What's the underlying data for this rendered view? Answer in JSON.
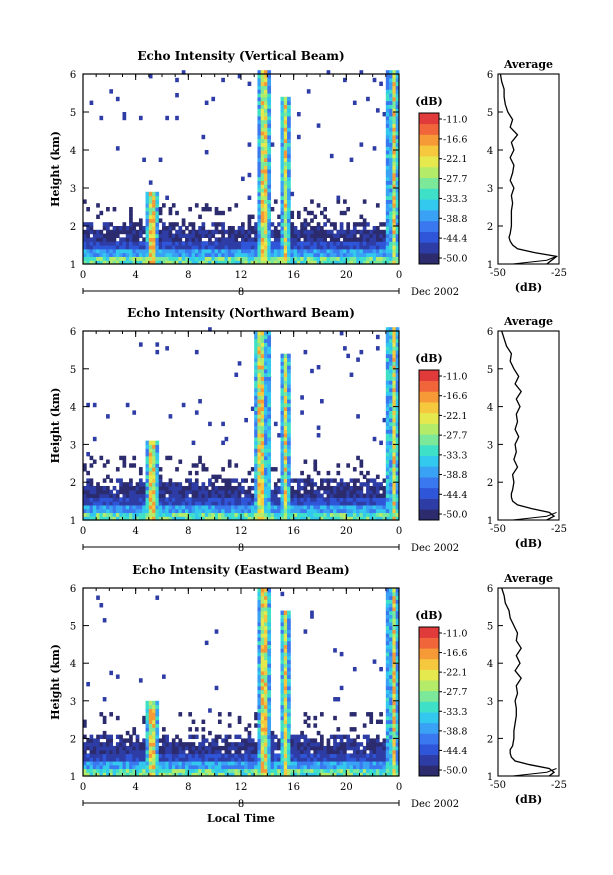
{
  "chart_data": [
    {
      "type": "heatmap",
      "title": "Echo Intensity (Vertical Beam)",
      "ylabel": "Height (km)",
      "yticks": [
        "1",
        "2",
        "3",
        "4",
        "5",
        "6"
      ],
      "ylim": [
        1,
        6
      ],
      "xticks": [
        "0",
        "4",
        "8",
        "12",
        "16",
        "20",
        "0"
      ],
      "xlim": [
        0,
        24
      ],
      "day_label": "8",
      "date_label": "Dec 2002",
      "colorbar": {
        "unit": "(dB)",
        "ticks": [
          "-11.0",
          "-16.6",
          "-22.1",
          "-27.7",
          "-33.3",
          "-38.8",
          "-44.4",
          "-50.0"
        ]
      },
      "spikes": [
        {
          "time": 5.2,
          "top": 2.9,
          "width": 0.5
        },
        {
          "time": 13.7,
          "top": 6.0,
          "width": 0.5
        },
        {
          "time": 15.3,
          "top": 5.3,
          "width": 0.35
        },
        {
          "time": 23.6,
          "top": 6.0,
          "width": 0.5
        }
      ],
      "average_profile": {
        "title": "Average",
        "xlabel": "(dB)",
        "xticks": [
          "-50",
          "-25"
        ],
        "xlim": [
          -50,
          -25
        ],
        "yticks": [
          "1",
          "2",
          "3",
          "4",
          "5",
          "6"
        ],
        "height": [
          1.0,
          1.1,
          1.2,
          1.3,
          1.4,
          1.5,
          1.6,
          1.7,
          1.8,
          2.0,
          2.2,
          2.4,
          2.6,
          2.8,
          3.0,
          3.2,
          3.4,
          3.6,
          3.8,
          4.0,
          4.2,
          4.4,
          4.6,
          4.8,
          5.0,
          5.2,
          5.4,
          5.6,
          5.8,
          6.0
        ],
        "value": [
          -30,
          -28,
          -26,
          -35,
          -42,
          -44,
          -45,
          -45.5,
          -45,
          -44.5,
          -44.5,
          -44.5,
          -44,
          -44.5,
          -43.5,
          -45,
          -44,
          -43.5,
          -45,
          -43.5,
          -44.5,
          -42,
          -45,
          -44,
          -46,
          -47,
          -47.5,
          -47.5,
          -48.5,
          -49
        ]
      }
    },
    {
      "type": "heatmap",
      "title": "Echo Intensity (Northward Beam)",
      "ylabel": "Height (km)",
      "yticks": [
        "1",
        "2",
        "3",
        "4",
        "5",
        "6"
      ],
      "ylim": [
        1,
        6
      ],
      "xticks": [
        "0",
        "4",
        "8",
        "12",
        "16",
        "20",
        "0"
      ],
      "xlim": [
        0,
        24
      ],
      "day_label": "8",
      "date_label": "Dec 2002",
      "colorbar": {
        "unit": "(dB)",
        "ticks": [
          "-11.0",
          "-16.6",
          "-22.1",
          "-27.7",
          "-33.3",
          "-38.8",
          "-44.4",
          "-50.0"
        ]
      },
      "spikes": [
        {
          "time": 5.3,
          "top": 3.1,
          "width": 0.5
        },
        {
          "time": 13.6,
          "top": 5.9,
          "width": 0.6
        },
        {
          "time": 15.4,
          "top": 5.3,
          "width": 0.35
        },
        {
          "time": 23.6,
          "top": 6.0,
          "width": 0.5
        }
      ],
      "average_profile": {
        "title": "Average",
        "xlabel": "(dB)",
        "xticks": [
          "-50",
          "-25"
        ],
        "xlim": [
          -50,
          -25
        ],
        "yticks": [
          "1",
          "2",
          "3",
          "4",
          "5",
          "6"
        ],
        "height": [
          1.0,
          1.1,
          1.2,
          1.3,
          1.4,
          1.5,
          1.6,
          1.7,
          1.8,
          2.0,
          2.2,
          2.4,
          2.6,
          2.8,
          3.0,
          3.2,
          3.4,
          3.6,
          3.8,
          4.0,
          4.2,
          4.4,
          4.6,
          4.8,
          5.0,
          5.2,
          5.4,
          5.6,
          5.8,
          6.0
        ],
        "value": [
          -30,
          -27,
          -29,
          -36,
          -42,
          -44,
          -44.5,
          -44.5,
          -44,
          -43.5,
          -44,
          -42,
          -43.5,
          -42.5,
          -43,
          -41.5,
          -43,
          -42,
          -42.5,
          -41,
          -42.5,
          -40.5,
          -43,
          -41.5,
          -43.5,
          -45,
          -44.5,
          -46.5,
          -47.5,
          -48.5
        ]
      }
    },
    {
      "type": "heatmap",
      "title": "Echo Intensity (Eastward Beam)",
      "ylabel": "Height (km)",
      "yticks": [
        "1",
        "2",
        "3",
        "4",
        "5",
        "6"
      ],
      "ylim": [
        1,
        6
      ],
      "xticks": [
        "0",
        "4",
        "8",
        "12",
        "16",
        "20",
        "0"
      ],
      "xlim": [
        0,
        24
      ],
      "day_label": "8",
      "date_label": "Dec 2002",
      "xlabel": "Local Time",
      "colorbar": {
        "unit": "(dB)",
        "ticks": [
          "-11.0",
          "-16.6",
          "-22.1",
          "-27.7",
          "-33.3",
          "-38.8",
          "-44.4",
          "-50.0"
        ]
      },
      "spikes": [
        {
          "time": 5.2,
          "top": 3.0,
          "width": 0.5
        },
        {
          "time": 13.7,
          "top": 5.9,
          "width": 0.5
        },
        {
          "time": 15.3,
          "top": 5.3,
          "width": 0.35
        },
        {
          "time": 23.6,
          "top": 5.9,
          "width": 0.5
        }
      ],
      "average_profile": {
        "title": "Average",
        "xlabel": "(dB)",
        "xticks": [
          "-50",
          "-25"
        ],
        "xlim": [
          -50,
          -25
        ],
        "yticks": [
          "1",
          "2",
          "3",
          "4",
          "5",
          "6"
        ],
        "height": [
          1.0,
          1.1,
          1.2,
          1.3,
          1.4,
          1.5,
          1.6,
          1.7,
          1.8,
          2.0,
          2.2,
          2.4,
          2.6,
          2.8,
          3.0,
          3.2,
          3.4,
          3.6,
          3.8,
          4.0,
          4.2,
          4.4,
          4.6,
          4.8,
          5.0,
          5.2,
          5.4,
          5.6,
          5.8,
          6.0
        ],
        "value": [
          -29,
          -27,
          -29,
          -37,
          -43,
          -44.5,
          -45,
          -45,
          -44,
          -43.5,
          -43.5,
          -43,
          -42.5,
          -42.5,
          -43,
          -42,
          -42.5,
          -40.5,
          -43,
          -41,
          -42.5,
          -40.5,
          -42.5,
          -42,
          -43.5,
          -45,
          -45.5,
          -47,
          -47.5,
          -48.5
        ]
      }
    }
  ],
  "colors": {
    "colormap": [
      "#2b2b6e",
      "#2e3da6",
      "#2f55d8",
      "#3a78f0",
      "#3aa2f5",
      "#33c8ee",
      "#3fe0c8",
      "#7be89a",
      "#b4ec6a",
      "#e6e94e",
      "#f6c83e",
      "#f59a36",
      "#f0653a",
      "#e03a3a"
    ]
  }
}
